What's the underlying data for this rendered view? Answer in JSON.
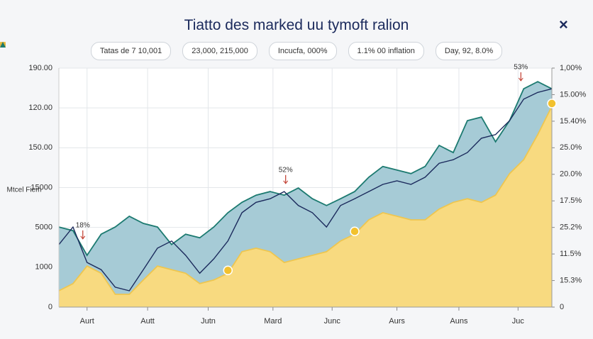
{
  "chart_data": {
    "type": "area",
    "title": "Tiatto des marked uu tymoft ralion",
    "close_icon": "×",
    "y_axis_label": "Mtcel Fiem",
    "x": [
      0,
      1,
      2,
      3,
      4,
      5,
      6,
      7,
      8,
      9,
      10,
      11,
      12,
      13,
      14,
      15,
      16,
      17,
      18,
      19,
      20,
      21,
      22,
      23,
      24,
      25,
      26,
      27,
      28,
      29,
      30,
      31,
      32,
      33,
      34,
      35
    ],
    "xlim": [
      0,
      35
    ],
    "xticks": [
      {
        "value": 2,
        "label": "Aurt"
      },
      {
        "value": 6.3,
        "label": "Autt"
      },
      {
        "value": 10.6,
        "label": "Jutn"
      },
      {
        "value": 15.2,
        "label": "Mard"
      },
      {
        "value": 19.4,
        "label": "Junc"
      },
      {
        "value": 24,
        "label": "Aurs"
      },
      {
        "value": 28.4,
        "label": "Auns"
      },
      {
        "value": 32.6,
        "label": "Juc"
      }
    ],
    "ylim": [
      0,
      6
    ],
    "yticks": [
      {
        "value": 0,
        "label": "0"
      },
      {
        "value": 1,
        "label": "1000"
      },
      {
        "value": 2,
        "label": "5000"
      },
      {
        "value": 3,
        "label": "15000"
      },
      {
        "value": 4,
        "label": "150.00"
      },
      {
        "value": 5,
        "label": "120.00"
      },
      {
        "value": 6,
        "label": "190.00"
      }
    ],
    "y2lim": [
      0,
      9
    ],
    "y2ticks": [
      {
        "value": 0,
        "label": "0"
      },
      {
        "value": 1,
        "label": "15.3%"
      },
      {
        "value": 2,
        "label": "11.5%"
      },
      {
        "value": 3,
        "label": "25.2%"
      },
      {
        "value": 4,
        "label": "17.5%"
      },
      {
        "value": 5,
        "label": "20.0%"
      },
      {
        "value": 6,
        "label": "25.0%"
      },
      {
        "value": 7,
        "label": "15.40%"
      },
      {
        "value": 8,
        "label": "15.00%"
      },
      {
        "value": 9,
        "label": "1,00%"
      }
    ],
    "grid": true,
    "series": [
      {
        "name": "Tatas de 7 10,001",
        "color": "#1c7a70",
        "fill": "#a6cbd6",
        "marker": "square",
        "kind": "area",
        "values": [
          2.01,
          1.92,
          1.3,
          1.83,
          2.01,
          2.28,
          2.1,
          2.01,
          1.57,
          1.83,
          1.74,
          2.01,
          2.37,
          2.63,
          2.81,
          2.9,
          2.81,
          2.99,
          2.72,
          2.55,
          2.72,
          2.9,
          3.26,
          3.53,
          3.44,
          3.35,
          3.53,
          4.06,
          3.88,
          4.68,
          4.77,
          4.15,
          4.68,
          5.48,
          5.66,
          5.48
        ]
      },
      {
        "name": "23,000, 215,000",
        "color": "#eec650",
        "fill": "#f8da80",
        "marker": "square",
        "kind": "area",
        "values": [
          0.41,
          0.59,
          1.03,
          0.85,
          0.32,
          0.32,
          0.68,
          1.03,
          0.94,
          0.85,
          0.59,
          0.68,
          0.85,
          1.39,
          1.48,
          1.39,
          1.12,
          1.21,
          1.3,
          1.39,
          1.66,
          1.83,
          2.19,
          2.37,
          2.28,
          2.19,
          2.19,
          2.46,
          2.63,
          2.72,
          2.63,
          2.81,
          3.35,
          3.7,
          4.33,
          5.04
        ]
      },
      {
        "name": "Incucfa, 000%",
        "color": "#1b2a5c",
        "marker": "circle",
        "kind": "line",
        "values": [
          1.57,
          2.01,
          1.12,
          0.94,
          0.5,
          0.41,
          0.94,
          1.48,
          1.66,
          1.3,
          0.85,
          1.21,
          1.66,
          2.37,
          2.63,
          2.72,
          2.9,
          2.55,
          2.37,
          2.01,
          2.55,
          2.72,
          2.9,
          3.08,
          3.17,
          3.08,
          3.26,
          3.61,
          3.7,
          3.88,
          4.24,
          4.33,
          4.68,
          5.22,
          5.39,
          5.48
        ]
      }
    ],
    "legend_extra": [
      {
        "label": "1.1% 00 inflation",
        "color": "#eab92c",
        "marker": "circle"
      },
      {
        "label": "Day, 92, 8.0%",
        "color": "#1c7a70",
        "marker": "triangle"
      }
    ],
    "annotations": [
      {
        "text": "18%",
        "x": 1.7,
        "y": 2.05,
        "color": "#c0392b"
      },
      {
        "text": "52%",
        "x": 16.1,
        "y": 3.44,
        "color": "#c0392b"
      },
      {
        "text": "53%",
        "x": 32.8,
        "y": 6.02,
        "color": "#c0392b"
      }
    ],
    "highlights": [
      {
        "series": 1,
        "index": 12
      },
      {
        "series": 1,
        "index": 21
      },
      {
        "series": 1,
        "index": 35
      }
    ]
  }
}
